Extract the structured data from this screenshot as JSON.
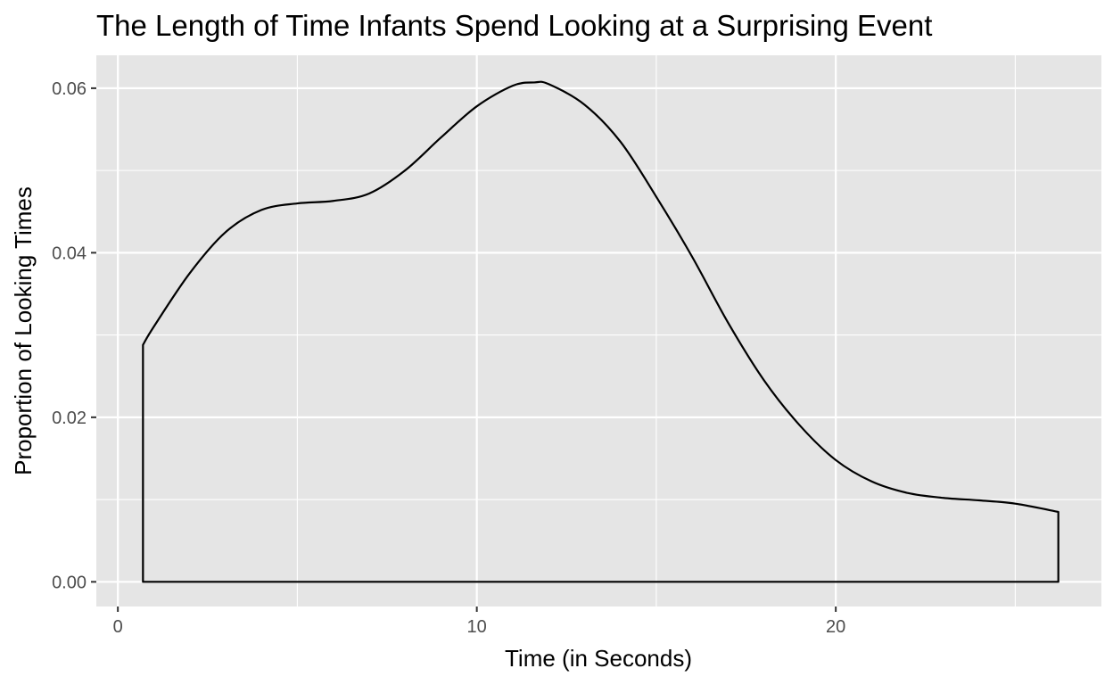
{
  "chart_data": {
    "type": "area",
    "title": "The Length of Time Infants Spend Looking at a Surprising Event",
    "xlabel": "Time (in Seconds)",
    "ylabel": "Proportion of Looking Times",
    "xlim": [
      -0.6,
      27.4
    ],
    "ylim": [
      -0.003,
      0.064
    ],
    "x_ticks": [
      0,
      10,
      20
    ],
    "x_tick_labels": [
      "0",
      "10",
      "20"
    ],
    "x_minor_ticks": [
      5,
      15,
      25
    ],
    "y_ticks": [
      0.0,
      0.02,
      0.04,
      0.06
    ],
    "y_tick_labels": [
      "0.00",
      "0.02",
      "0.04",
      "0.06"
    ],
    "y_minor_ticks": [
      0.01,
      0.03,
      0.05
    ],
    "grid": true,
    "series": [
      {
        "x": [
          0.7,
          1.0,
          2.0,
          3.0,
          4.0,
          5.0,
          6.0,
          7.0,
          8.0,
          9.0,
          10.0,
          11.0,
          11.6,
          12.0,
          13.0,
          14.0,
          15.0,
          16.0,
          17.0,
          18.0,
          19.0,
          20.0,
          21.0,
          22.0,
          23.0,
          24.0,
          25.0,
          26.2
        ],
        "values": [
          0.0288,
          0.031,
          0.0375,
          0.0425,
          0.0452,
          0.046,
          0.0463,
          0.0472,
          0.05,
          0.054,
          0.0578,
          0.0603,
          0.0607,
          0.0605,
          0.058,
          0.0535,
          0.0468,
          0.0395,
          0.0315,
          0.0245,
          0.019,
          0.0148,
          0.0122,
          0.0108,
          0.0102,
          0.0099,
          0.0095,
          0.0085
        ]
      }
    ],
    "colors": {
      "panel_background": "#e5e5e5",
      "grid": "#ffffff",
      "line": "#000000",
      "tick_label": "#4d4d4d"
    }
  }
}
